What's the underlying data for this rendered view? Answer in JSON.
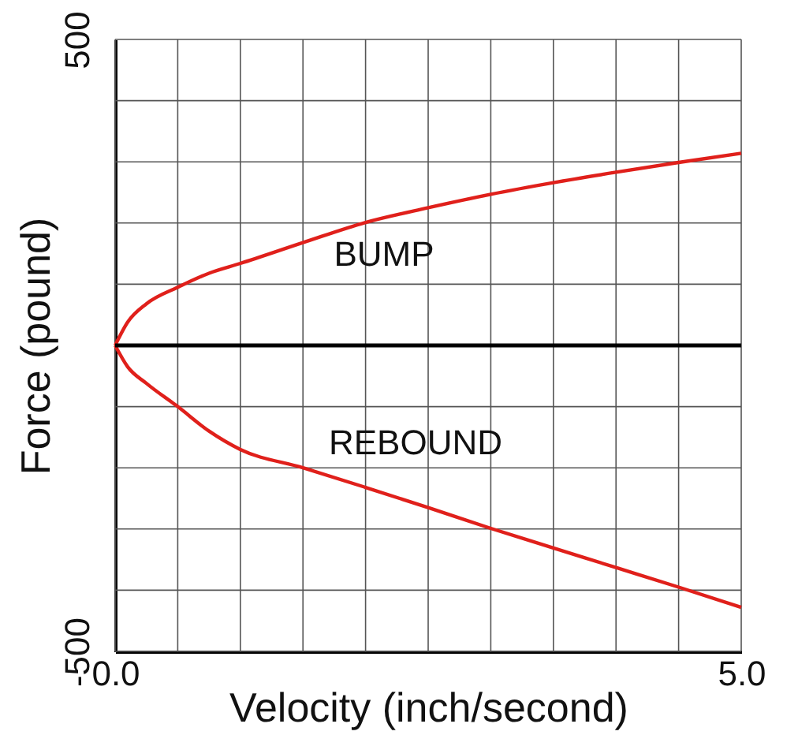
{
  "chart_data": {
    "type": "line",
    "xlabel": "Velocity (inch/second)",
    "ylabel": "Force (pound)",
    "x": [
      0,
      0.1,
      0.25,
      0.5,
      0.75,
      1,
      1.5,
      2,
      2.5,
      3,
      3.5,
      4,
      4.5,
      5
    ],
    "series": [
      {
        "name": "BUMP",
        "color": "#e0201b",
        "values": [
          0,
          38,
          68,
          95,
          118,
          134,
          168,
          201,
          225,
          247,
          266,
          283,
          299,
          314
        ]
      },
      {
        "name": "REBOUND",
        "color": "#e0201b",
        "values": [
          0,
          -35,
          -62,
          -100,
          -140,
          -170,
          -200,
          -232,
          -265,
          -299,
          -331,
          -363,
          -395,
          -428
        ]
      }
    ],
    "xlim": [
      0,
      5
    ],
    "ylim": [
      -500,
      500
    ],
    "xticks": [
      {
        "value": 0,
        "label": "0.0"
      },
      {
        "value": 0.5,
        "label": null
      },
      {
        "value": 1,
        "label": null
      },
      {
        "value": 1.5,
        "label": null
      },
      {
        "value": 2,
        "label": null
      },
      {
        "value": 2.5,
        "label": null
      },
      {
        "value": 3,
        "label": null
      },
      {
        "value": 3.5,
        "label": null
      },
      {
        "value": 4,
        "label": null
      },
      {
        "value": 4.5,
        "label": null
      },
      {
        "value": 5,
        "label": "5.0"
      }
    ],
    "yticks": [
      -500,
      {
        "value": -400,
        "label": null
      },
      {
        "value": -300,
        "label": null
      },
      {
        "value": -200,
        "label": null
      },
      {
        "value": -100,
        "label": null
      },
      {
        "value": 0,
        "label": null
      },
      {
        "value": 100,
        "label": null
      },
      {
        "value": 200,
        "label": null
      },
      {
        "value": 300,
        "label": null
      },
      {
        "value": 400,
        "label": null
      },
      500
    ],
    "ref_lines": [
      {
        "axis": "y",
        "value": 0,
        "color": "#000000"
      }
    ],
    "grid": true,
    "marker": "none",
    "line_style": "solid",
    "legend": false
  }
}
